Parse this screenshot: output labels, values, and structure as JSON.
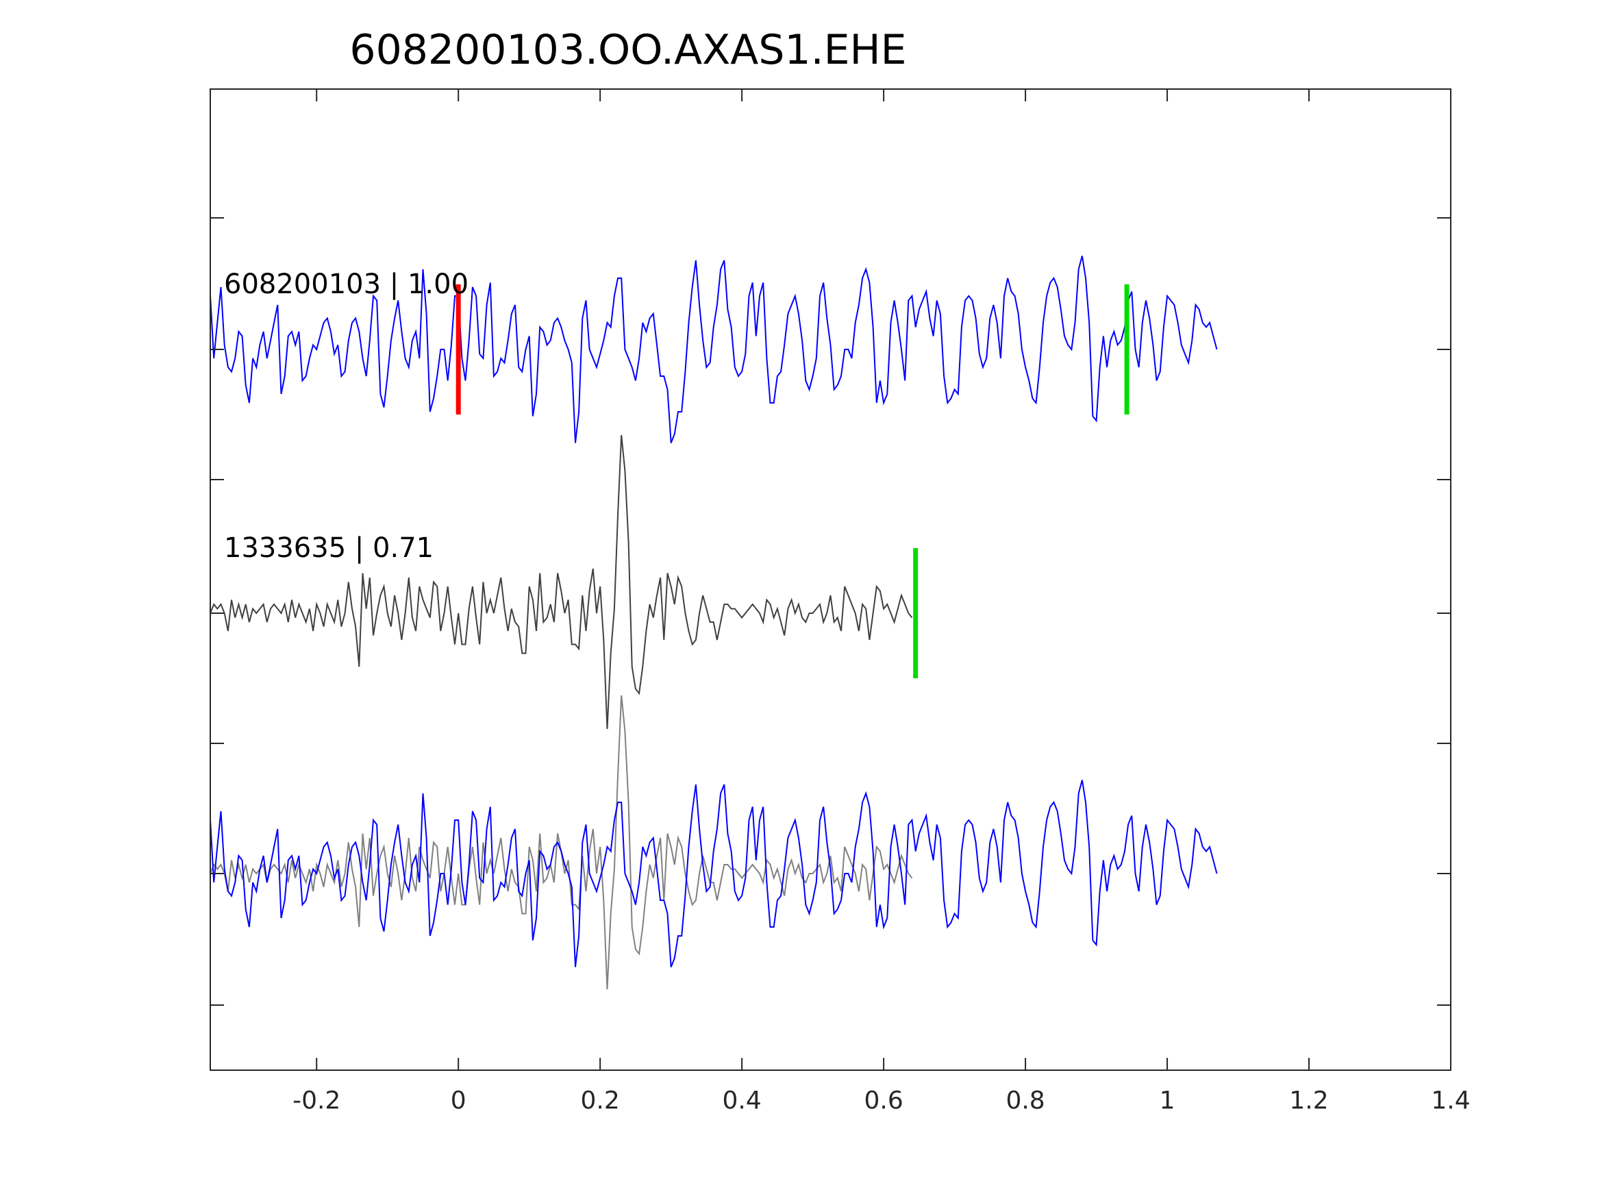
{
  "chart_data": {
    "type": "line",
    "title": "608200103.OO.AXAS1.EHE",
    "xlabel": "",
    "ylabel": "",
    "xlim": [
      -0.35,
      1.4
    ],
    "xticks": [
      -0.2,
      0,
      0.2,
      0.4,
      0.6,
      0.8,
      1,
      1.2,
      1.4
    ],
    "xtick_labels": [
      "-0.2",
      "0",
      "0.2",
      "0.4",
      "0.6",
      "0.8",
      "1",
      "1.2",
      "1.4"
    ],
    "grid": false,
    "legend": "none",
    "colors": {
      "template": "#0000ff",
      "detection": "#404040",
      "overlay_detection": "#808080",
      "pick_red": "#ff0000",
      "pick_green": "#00dd00",
      "axis": "#262626"
    },
    "traces": [
      {
        "label": "608200103 | 1.00",
        "color": "#0000ff",
        "picks": [
          {
            "t": 0.0,
            "color": "#ff0000"
          },
          {
            "t": 0.943,
            "color": "#00dd00"
          }
        ],
        "samples_t0": -0.35,
        "dt": 0.005,
        "values": [
          0.6,
          -0.1,
          0.3,
          0.7,
          0.05,
          -0.2,
          -0.25,
          -0.1,
          0.2,
          0.15,
          -0.4,
          -0.6,
          -0.1,
          -0.2,
          0.05,
          0.2,
          -0.1,
          0.1,
          0.3,
          0.5,
          -0.5,
          -0.3,
          0.15,
          0.2,
          0.05,
          0.2,
          -0.35,
          -0.3,
          -0.1,
          0.05,
          0.0,
          0.15,
          0.3,
          0.35,
          0.2,
          -0.05,
          0.05,
          -0.3,
          -0.25,
          0.1,
          0.3,
          0.35,
          0.2,
          -0.1,
          -0.3,
          0.1,
          0.6,
          0.55,
          -0.5,
          -0.65,
          -0.3,
          0.1,
          0.35,
          0.55,
          0.2,
          -0.1,
          -0.2,
          0.1,
          0.2,
          -0.1,
          0.9,
          0.4,
          -0.7,
          -0.55,
          -0.3,
          0.0,
          0.0,
          -0.35,
          0.05,
          0.6,
          0.6,
          -0.1,
          -0.35,
          0.1,
          0.7,
          0.6,
          -0.05,
          -0.1,
          0.5,
          0.75,
          -0.3,
          -0.25,
          -0.1,
          -0.15,
          0.1,
          0.4,
          0.5,
          -0.2,
          -0.25,
          0.0,
          0.15,
          -0.75,
          -0.5,
          0.25,
          0.2,
          0.05,
          0.1,
          0.3,
          0.35,
          0.25,
          0.1,
          0.0,
          -0.15,
          -1.05,
          -0.7,
          0.35,
          0.55,
          0.0,
          -0.1,
          -0.2,
          -0.05,
          0.1,
          0.3,
          0.25,
          0.6,
          0.8,
          0.8,
          0.0,
          -0.1,
          -0.2,
          -0.35,
          -0.1,
          0.3,
          0.2,
          0.35,
          0.4,
          0.05,
          -0.3,
          -0.3,
          -0.45,
          -1.05,
          -0.95,
          -0.7,
          -0.7,
          -0.25,
          0.3,
          0.7,
          1.0,
          0.5,
          0.1,
          -0.2,
          -0.15,
          0.25,
          0.5,
          0.9,
          1.0,
          0.45,
          0.25,
          -0.2,
          -0.3,
          -0.25,
          -0.05,
          0.6,
          0.75,
          0.15,
          0.6,
          0.75,
          -0.1,
          -0.6,
          -0.6,
          -0.3,
          -0.25,
          0.05,
          0.4,
          0.5,
          0.6,
          0.4,
          0.1,
          -0.35,
          -0.45,
          -0.3,
          -0.1,
          0.6,
          0.75,
          0.35,
          0.05,
          -0.45,
          -0.4,
          -0.3,
          0.0,
          0.0,
          -0.1,
          0.3,
          0.5,
          0.8,
          0.9,
          0.75,
          0.25,
          -0.6,
          -0.35,
          -0.6,
          -0.5,
          0.3,
          0.55,
          0.3,
          0.0,
          -0.35,
          0.55,
          0.6,
          0.25,
          0.45,
          0.55,
          0.65,
          0.35,
          0.15,
          0.55,
          0.4,
          -0.3,
          -0.6,
          -0.55,
          -0.45,
          -0.5,
          0.25,
          0.55,
          0.6,
          0.55,
          0.35,
          -0.05,
          -0.2,
          -0.1,
          0.35,
          0.5,
          0.3,
          -0.1,
          0.6,
          0.8,
          0.65,
          0.6,
          0.4,
          0.0,
          -0.2,
          -0.35,
          -0.55,
          -0.6,
          -0.2,
          0.3,
          0.6,
          0.75,
          0.8,
          0.7,
          0.45,
          0.15,
          0.05,
          0.0,
          0.3,
          0.9,
          1.05,
          0.8,
          0.3,
          -0.75,
          -0.8,
          -0.2,
          0.15,
          -0.2,
          0.1,
          0.2,
          0.05,
          0.1,
          0.25,
          0.55,
          0.65,
          0.0,
          -0.2,
          0.3,
          0.55,
          0.35,
          0.05,
          -0.35,
          -0.25,
          0.25,
          0.6,
          0.55,
          0.5,
          0.3,
          0.05,
          -0.05,
          -0.15,
          0.1,
          0.5,
          0.45,
          0.3,
          0.25,
          0.3,
          0.15,
          0.0
        ]
      },
      {
        "label": "1333635 | 0.71",
        "color": "#404040",
        "picks": [
          {
            "t": 0.645,
            "color": "#00dd00"
          }
        ],
        "samples_t0": -0.35,
        "dt": 0.005,
        "values": [
          0.0,
          0.1,
          0.05,
          0.1,
          0.0,
          -0.2,
          0.15,
          -0.05,
          0.1,
          -0.05,
          0.1,
          -0.1,
          0.05,
          0.0,
          0.05,
          0.1,
          -0.1,
          0.05,
          0.1,
          0.05,
          0.0,
          0.1,
          -0.1,
          0.15,
          -0.05,
          0.1,
          0.0,
          -0.1,
          0.05,
          -0.2,
          0.1,
          0.0,
          -0.15,
          0.1,
          0.0,
          -0.1,
          0.15,
          -0.15,
          0.0,
          0.35,
          0.05,
          -0.15,
          -0.6,
          0.45,
          0.05,
          0.4,
          -0.25,
          0.0,
          0.2,
          0.3,
          0.0,
          -0.15,
          0.2,
          0.0,
          -0.3,
          0.0,
          0.4,
          -0.05,
          -0.2,
          0.3,
          0.15,
          0.05,
          -0.05,
          0.35,
          0.3,
          -0.2,
          0.0,
          0.3,
          -0.05,
          -0.35,
          0.0,
          -0.35,
          -0.35,
          0.05,
          0.3,
          -0.05,
          -0.35,
          0.35,
          0.0,
          0.15,
          0.0,
          0.2,
          0.4,
          0.05,
          -0.2,
          0.05,
          -0.1,
          -0.15,
          -0.45,
          -0.45,
          0.3,
          0.15,
          -0.2,
          0.45,
          -0.1,
          -0.05,
          0.1,
          -0.1,
          0.45,
          0.25,
          0.0,
          0.15,
          -0.35,
          -0.35,
          -0.4,
          0.2,
          -0.2,
          0.25,
          0.5,
          0.0,
          0.3,
          -0.3,
          -1.3,
          -0.45,
          0.05,
          1.1,
          2.0,
          1.6,
          0.8,
          -0.6,
          -0.85,
          -0.9,
          -0.6,
          -0.2,
          0.1,
          -0.05,
          0.2,
          0.4,
          -0.3,
          0.45,
          0.3,
          0.1,
          0.4,
          0.3,
          0.0,
          -0.2,
          -0.35,
          -0.3,
          0.0,
          0.2,
          0.05,
          -0.1,
          -0.1,
          -0.3,
          -0.1,
          0.1,
          0.1,
          0.05,
          0.05,
          0.0,
          -0.05,
          0.0,
          0.05,
          0.1,
          0.05,
          0.0,
          -0.1,
          0.15,
          0.1,
          -0.05,
          0.05,
          -0.1,
          -0.25,
          0.05,
          0.15,
          0.0,
          0.1,
          -0.05,
          -0.1,
          0.0,
          0.0,
          0.05,
          0.1,
          -0.1,
          0.0,
          0.2,
          -0.1,
          -0.05,
          -0.2,
          0.3,
          0.2,
          0.1,
          0.0,
          -0.2,
          0.1,
          0.05,
          -0.3,
          0.0,
          0.3,
          0.25,
          0.05,
          0.1,
          0.0,
          -0.1,
          0.05,
          0.2,
          0.1,
          0.0,
          -0.05
        ]
      }
    ]
  }
}
